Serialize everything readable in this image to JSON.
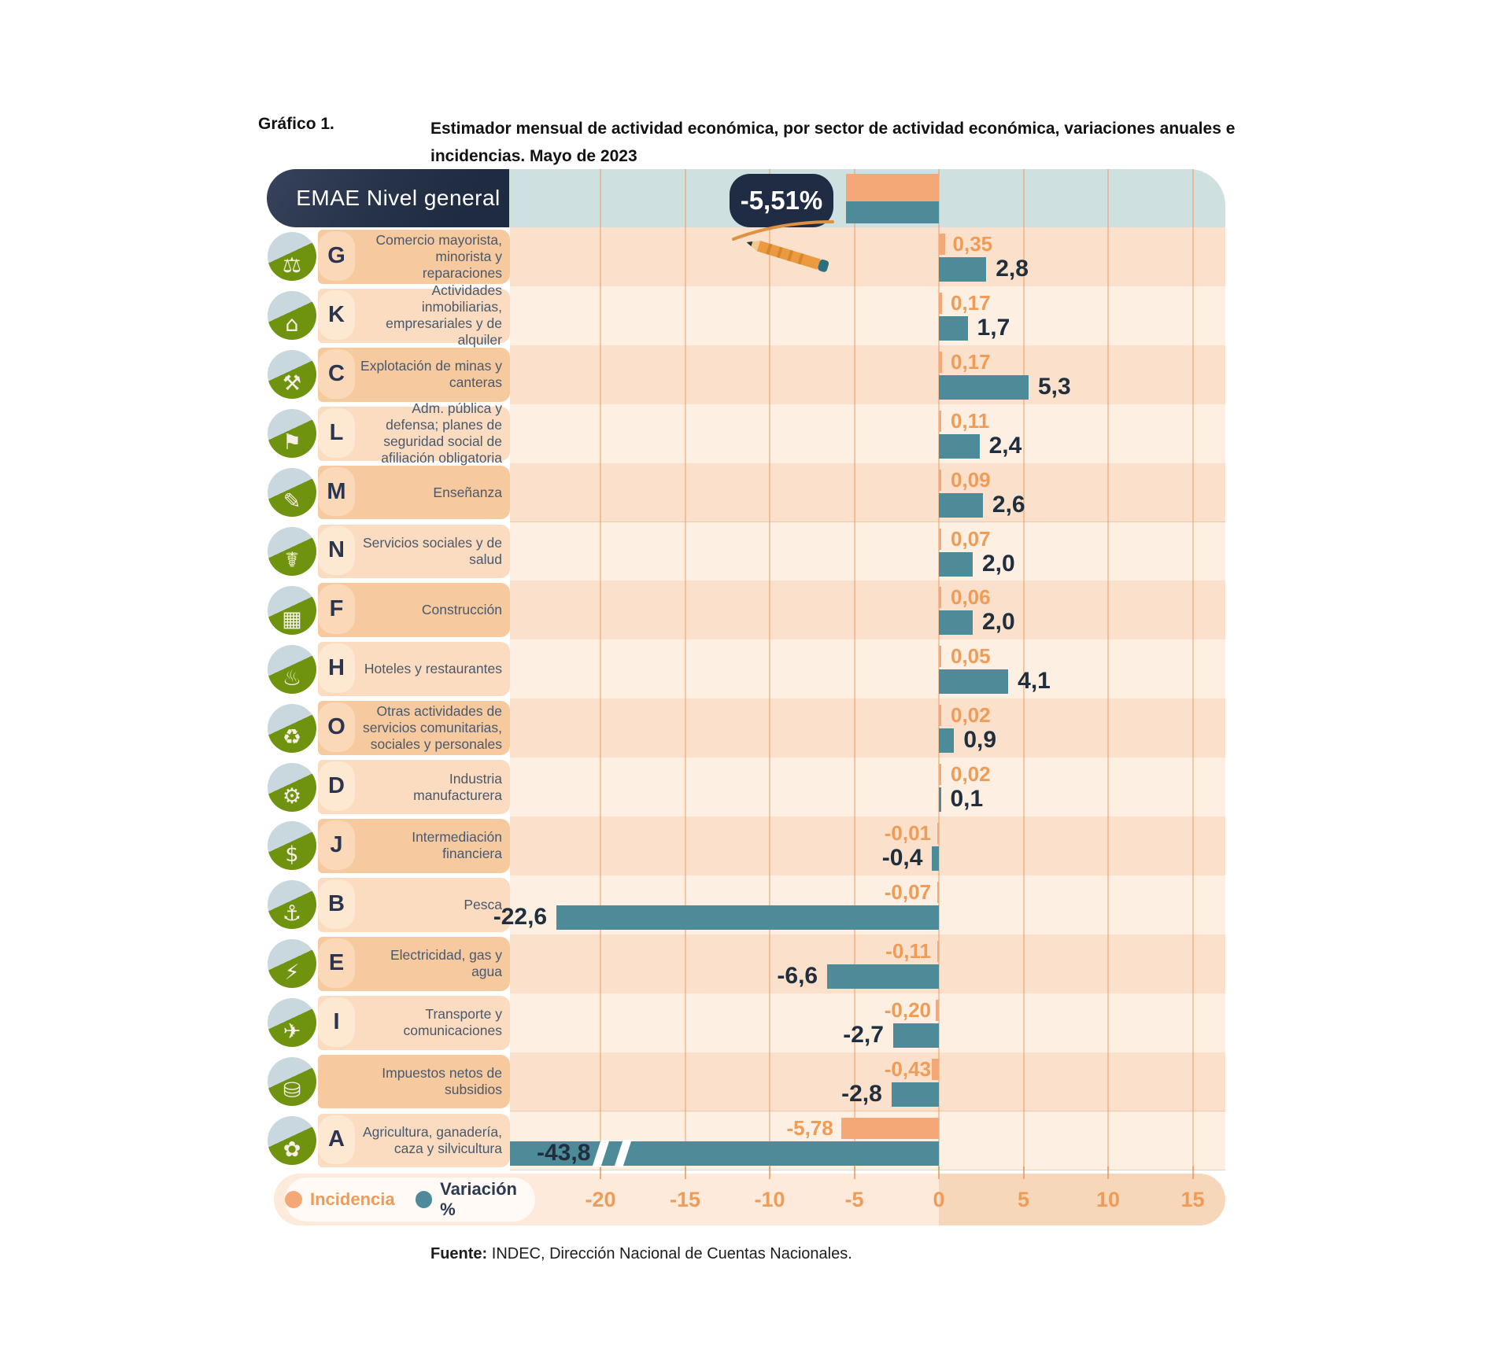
{
  "title": {
    "prefix": "Gráfico 1.",
    "line1": "Estimador mensual de actividad económica, por sector de actividad económica, variaciones anuales e",
    "line2": "incidencias. Mayo de 2023"
  },
  "colors": {
    "incidence": "#f5a877",
    "variation": "#4d8b99",
    "band_blue": "#cfe0e1",
    "navy": "#202c44",
    "orange_text": "#ee9c58",
    "dark_value_text": "#202e3e",
    "stripe_dark": "#fbe1cb",
    "stripe_light": "#fdefe2",
    "labelbox_dark": "#f7c99f",
    "labelbox_light": "#fbdcc0",
    "blob_dark": "#fbd9b8",
    "blob_light": "#fde8d2"
  },
  "legend": [
    {
      "label": "Incidencia",
      "color": "#f5a877"
    },
    {
      "label": "Variación %",
      "color": "#4d8b99"
    }
  ],
  "source": {
    "prefix": "Fuente:",
    "text": " INDEC, Dirección Nacional de Cuentas Nacionales."
  },
  "chart_data": {
    "type": "bar",
    "orientation": "horizontal",
    "unit": "%",
    "x_ticks": [
      -20,
      -15,
      -10,
      -5,
      0,
      5,
      10,
      15
    ],
    "series_names": [
      "Incidencia",
      "Variación %"
    ],
    "general": {
      "label": "EMAE Nivel general",
      "variation": -5.51,
      "badge": "-5,51%"
    },
    "rows": [
      {
        "letter": "G",
        "icon": "commerce-cart-icon",
        "glyph": "⚖",
        "label": "Comercio mayorista, minorista y reparaciones",
        "incidence": 0.35,
        "incidence_label": "0,35",
        "variation": 2.8,
        "variation_label": "2,8"
      },
      {
        "letter": "K",
        "icon": "real-estate-icon",
        "glyph": "⌂",
        "label": "Actividades inmobiliarias, empresariales y de alquiler",
        "incidence": 0.17,
        "incidence_label": "0,17",
        "variation": 1.7,
        "variation_label": "1,7"
      },
      {
        "letter": "C",
        "icon": "mining-icon",
        "glyph": "⚒",
        "label": "Explotación de minas y canteras",
        "incidence": 0.17,
        "incidence_label": "0,17",
        "variation": 5.3,
        "variation_label": "5,3"
      },
      {
        "letter": "L",
        "icon": "public-administration-icon",
        "glyph": "⚑",
        "label": "Adm. pública y defensa; planes de seguridad social de afiliación obligatoria",
        "incidence": 0.11,
        "incidence_label": "0,11",
        "variation": 2.4,
        "variation_label": "2,4"
      },
      {
        "letter": "M",
        "icon": "education-icon",
        "glyph": "✎",
        "label": "Enseñanza",
        "incidence": 0.09,
        "incidence_label": "0,09",
        "variation": 2.6,
        "variation_label": "2,6"
      },
      {
        "letter": "N",
        "icon": "health-icon",
        "glyph": "☤",
        "label": "Servicios sociales y de salud",
        "incidence": 0.07,
        "incidence_label": "0,07",
        "variation": 2.0,
        "variation_label": "2,0"
      },
      {
        "letter": "F",
        "icon": "construction-icon",
        "glyph": "▦",
        "label": "Construcción",
        "incidence": 0.06,
        "incidence_label": "0,06",
        "variation": 2.0,
        "variation_label": "2,0"
      },
      {
        "letter": "H",
        "icon": "hotels-restaurants-icon",
        "glyph": "♨",
        "label": "Hoteles y restaurantes",
        "incidence": 0.05,
        "incidence_label": "0,05",
        "variation": 4.1,
        "variation_label": "4,1"
      },
      {
        "letter": "O",
        "icon": "community-services-icon",
        "glyph": "♻",
        "label": "Otras actividades de servicios comunitarias, sociales y personales",
        "incidence": 0.02,
        "incidence_label": "0,02",
        "variation": 0.9,
        "variation_label": "0,9"
      },
      {
        "letter": "D",
        "icon": "manufacturing-icon",
        "glyph": "⚙",
        "label": "Industria manufacturera",
        "incidence": 0.02,
        "incidence_label": "0,02",
        "variation": 0.1,
        "variation_label": "0,1"
      },
      {
        "letter": "J",
        "icon": "financial-icon",
        "glyph": "$",
        "label": "Intermediación financiera",
        "incidence": -0.01,
        "incidence_label": "-0,01",
        "variation": -0.4,
        "variation_label": "-0,4"
      },
      {
        "letter": "B",
        "icon": "fishing-icon",
        "glyph": "⚓",
        "label": "Pesca",
        "incidence": -0.07,
        "incidence_label": "-0,07",
        "variation": -22.6,
        "variation_label": "-22,6"
      },
      {
        "letter": "E",
        "icon": "electricity-gas-water-icon",
        "glyph": "⚡",
        "label": "Electricidad, gas y agua",
        "incidence": -0.11,
        "incidence_label": "-0,11",
        "variation": -6.6,
        "variation_label": "-6,6"
      },
      {
        "letter": "I",
        "icon": "transport-communications-icon",
        "glyph": "✈",
        "label": "Transporte y comunicaciones",
        "incidence": -0.2,
        "incidence_label": "-0,20",
        "variation": -2.7,
        "variation_label": "-2,7"
      },
      {
        "letter": "",
        "icon": "net-taxes-icon",
        "glyph": "⛁",
        "label": "Impuestos netos de subsidios",
        "incidence": -0.43,
        "incidence_label": "-0,43",
        "variation": -2.8,
        "variation_label": "-2,8"
      },
      {
        "letter": "A",
        "icon": "agriculture-icon",
        "glyph": "✿",
        "label": "Agricultura, ganadería, caza y silvicultura",
        "incidence": -5.78,
        "incidence_label": "-5,78",
        "variation": -43.8,
        "variation_label": "-43,8",
        "clipped": true
      }
    ]
  }
}
